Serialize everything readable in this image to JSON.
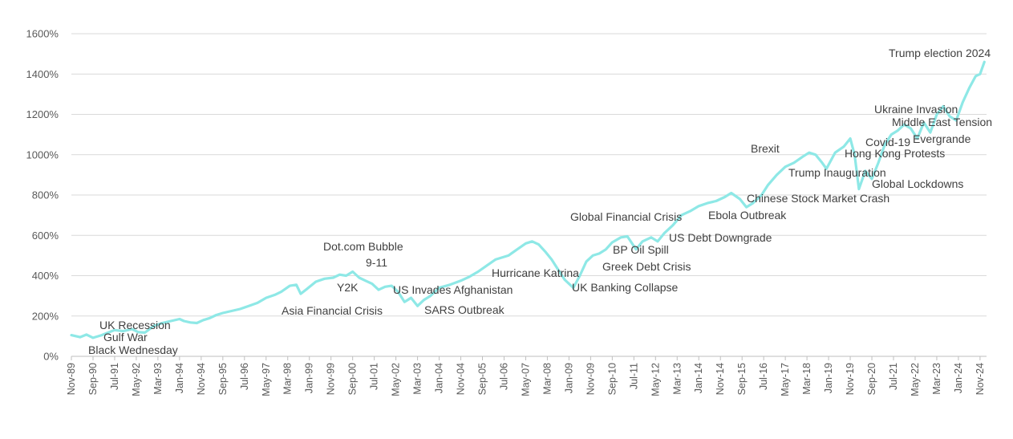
{
  "chart_data": {
    "type": "line",
    "title": "",
    "xlabel": "",
    "ylabel": "",
    "ylim": [
      0,
      1600
    ],
    "grid": true,
    "legend": "none",
    "line_color": "#8ee8e6",
    "yticks": [
      "0%",
      "200%",
      "400%",
      "600%",
      "800%",
      "1000%",
      "1200%",
      "1400%",
      "1600%"
    ],
    "xticks": [
      "Nov-89",
      "Sep-90",
      "Jul-91",
      "May-92",
      "Mar-93",
      "Jan-94",
      "Nov-94",
      "Sep-95",
      "Jul-96",
      "May-97",
      "Mar-98",
      "Jan-99",
      "Nov-99",
      "Sep-00",
      "Jul-01",
      "May-02",
      "Mar-03",
      "Jan-04",
      "Nov-04",
      "Sep-05",
      "Jul-06",
      "May-07",
      "Mar-08",
      "Jan-09",
      "Nov-09",
      "Sep-10",
      "Jul-11",
      "May-12",
      "Mar-13",
      "Jan-14",
      "Nov-14",
      "Sep-15",
      "Jul-16",
      "May-17",
      "Mar-18",
      "Jan-19",
      "Nov-19",
      "Sep-20",
      "Jul-21",
      "May-22",
      "Mar-23",
      "Jan-24",
      "Nov-24"
    ],
    "series": [
      {
        "x": [
          "1989-11",
          "1990-03",
          "1990-06",
          "1990-09",
          "1991-01",
          "1991-04",
          "1991-07",
          "1991-11",
          "1992-03",
          "1992-06",
          "1992-09",
          "1993-01",
          "1993-05",
          "1993-09",
          "1994-01",
          "1994-03",
          "1994-06",
          "1994-09",
          "1994-12",
          "1995-03",
          "1995-06",
          "1995-09",
          "1996-01",
          "1996-05",
          "1996-09",
          "1997-01",
          "1997-05",
          "1997-09",
          "1997-12",
          "1998-04",
          "1998-07",
          "1998-09",
          "1998-12",
          "1999-04",
          "1999-08",
          "1999-12",
          "2000-03",
          "2000-06",
          "2000-09",
          "2000-12",
          "2001-03",
          "2001-06",
          "2001-09",
          "2001-12",
          "2002-03",
          "2002-06",
          "2002-09",
          "2002-12",
          "2003-03",
          "2003-06",
          "2003-09",
          "2004-01",
          "2004-06",
          "2004-11",
          "2005-03",
          "2005-07",
          "2005-11",
          "2006-03",
          "2006-06",
          "2006-09",
          "2007-01",
          "2007-05",
          "2007-08",
          "2007-11",
          "2008-02",
          "2008-05",
          "2008-08",
          "2008-11",
          "2009-03",
          "2009-06",
          "2009-09",
          "2009-12",
          "2010-03",
          "2010-06",
          "2010-09",
          "2011-01",
          "2011-04",
          "2011-08",
          "2011-11",
          "2012-03",
          "2012-06",
          "2012-09",
          "2013-01",
          "2013-05",
          "2013-09",
          "2014-01",
          "2014-05",
          "2014-09",
          "2015-01",
          "2015-04",
          "2015-08",
          "2015-11",
          "2016-02",
          "2016-06",
          "2016-09",
          "2017-01",
          "2017-05",
          "2017-09",
          "2018-01",
          "2018-04",
          "2018-07",
          "2018-10",
          "2018-12",
          "2019-04",
          "2019-08",
          "2019-11",
          "2020-01",
          "2020-03",
          "2020-06",
          "2020-09",
          "2020-12",
          "2021-03",
          "2021-06",
          "2021-09",
          "2021-12",
          "2022-03",
          "2022-06",
          "2022-09",
          "2022-12",
          "2023-03",
          "2023-06",
          "2023-09",
          "2023-12",
          "2024-03",
          "2024-06",
          "2024-09",
          "2024-11",
          "2025-01"
        ],
        "values": [
          105,
          95,
          108,
          92,
          105,
          118,
          130,
          125,
          135,
          120,
          118,
          150,
          165,
          175,
          185,
          175,
          168,
          165,
          180,
          190,
          205,
          215,
          225,
          235,
          250,
          265,
          290,
          305,
          320,
          350,
          355,
          310,
          335,
          370,
          385,
          390,
          405,
          400,
          420,
          390,
          375,
          360,
          330,
          345,
          350,
          320,
          270,
          290,
          250,
          280,
          300,
          340,
          355,
          375,
          395,
          420,
          450,
          480,
          490,
          500,
          530,
          560,
          570,
          555,
          520,
          480,
          430,
          380,
          340,
          400,
          470,
          500,
          510,
          530,
          565,
          590,
          595,
          530,
          570,
          590,
          570,
          610,
          650,
          700,
          720,
          745,
          760,
          770,
          790,
          810,
          780,
          740,
          760,
          800,
          850,
          900,
          940,
          960,
          990,
          1010,
          1000,
          960,
          930,
          1010,
          1040,
          1080,
          1000,
          830,
          920,
          880,
          960,
          1050,
          1100,
          1120,
          1150,
          1130,
          1080,
          1160,
          1110,
          1200,
          1240,
          1190,
          1170,
          1260,
          1330,
          1390,
          1400,
          1460
        ]
      }
    ],
    "annotations": [
      {
        "text": "UK Recession",
        "date": "1991-01"
      },
      {
        "text": "Gulf War",
        "date": "1991-01"
      },
      {
        "text": "Black Wednesday",
        "date": "1992-09"
      },
      {
        "text": "Asia Financial Crisis",
        "date": "1998-07"
      },
      {
        "text": "Y2K",
        "date": "2000-01"
      },
      {
        "text": "Dot.com Bubble",
        "date": "2000-03"
      },
      {
        "text": "9-11",
        "date": "2001-09"
      },
      {
        "text": "US Invades Afghanistan",
        "date": "2001-10"
      },
      {
        "text": "SARS Outbreak",
        "date": "2003-03"
      },
      {
        "text": "Hurricane Katrina",
        "date": "2005-08"
      },
      {
        "text": "UK Banking Collapse",
        "date": "2008-10"
      },
      {
        "text": "Global Financial Crisis",
        "date": "2008-09"
      },
      {
        "text": "BP Oil Spill",
        "date": "2010-04"
      },
      {
        "text": "Greek Debt Crisis",
        "date": "2010-05"
      },
      {
        "text": "US Debt Downgrade",
        "date": "2011-08"
      },
      {
        "text": "Ebola Outbreak",
        "date": "2014-08"
      },
      {
        "text": "Chinese Stock Market Crash",
        "date": "2015-08"
      },
      {
        "text": "Brexit",
        "date": "2016-06"
      },
      {
        "text": "Trump Inauguration",
        "date": "2017-01"
      },
      {
        "text": "Hong Kong Protests",
        "date": "2019-06"
      },
      {
        "text": "Covid-19",
        "date": "2020-03"
      },
      {
        "text": "Global Lockdowns",
        "date": "2020-04"
      },
      {
        "text": "Ukraine Invasion",
        "date": "2022-02"
      },
      {
        "text": "Middle East Tension",
        "date": "2023-10"
      },
      {
        "text": "Evergrande",
        "date": "2023-08"
      },
      {
        "text": "Trump election 2024",
        "date": "2024-11"
      }
    ]
  }
}
